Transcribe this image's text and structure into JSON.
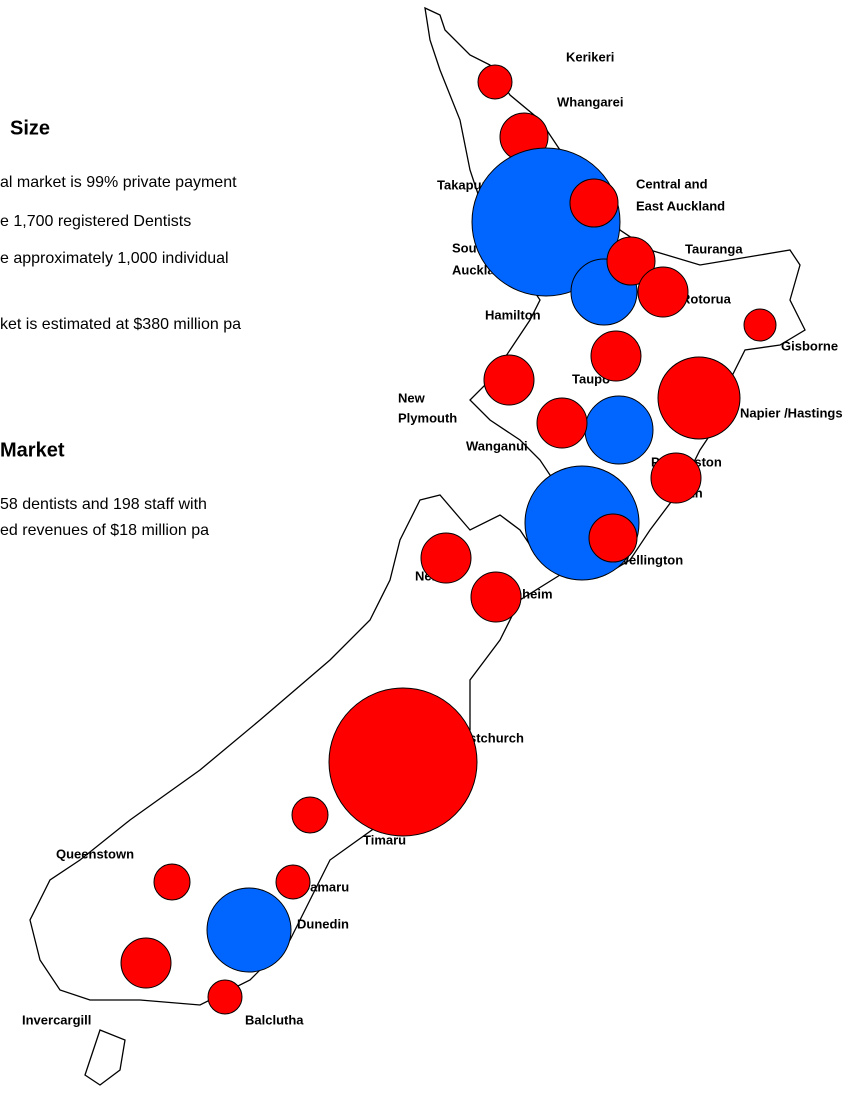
{
  "text": {
    "size_heading": "Size",
    "size_lines": [
      "al market is 99% private payment",
      "e 1,700 registered Dentists",
      "e approximately 1,000 individual",
      "ket is estimated at $380 million pa"
    ],
    "market_heading": "Market",
    "market_lines": [
      "58 dentists and 198 staff with",
      "ed revenues of $18 million pa"
    ]
  },
  "labels": [
    "Kerikeri",
    "Whangarei",
    "Takapuna",
    "Central and",
    "East Auckland",
    "South",
    "Auckland",
    "Tauranga",
    "Rotorua",
    "Hamilton",
    "Gisborne",
    "Taupo",
    "New",
    "Plymouth",
    "Napier /Hastings",
    "Wanganui",
    "Palmerston",
    "North",
    "Wellington",
    "Nelson",
    "Blenheim",
    "Christchurch",
    "Timaru",
    "Queenstown",
    "Oamaru",
    "Dunedin",
    "Invercargill",
    "Balclutha"
  ]
}
